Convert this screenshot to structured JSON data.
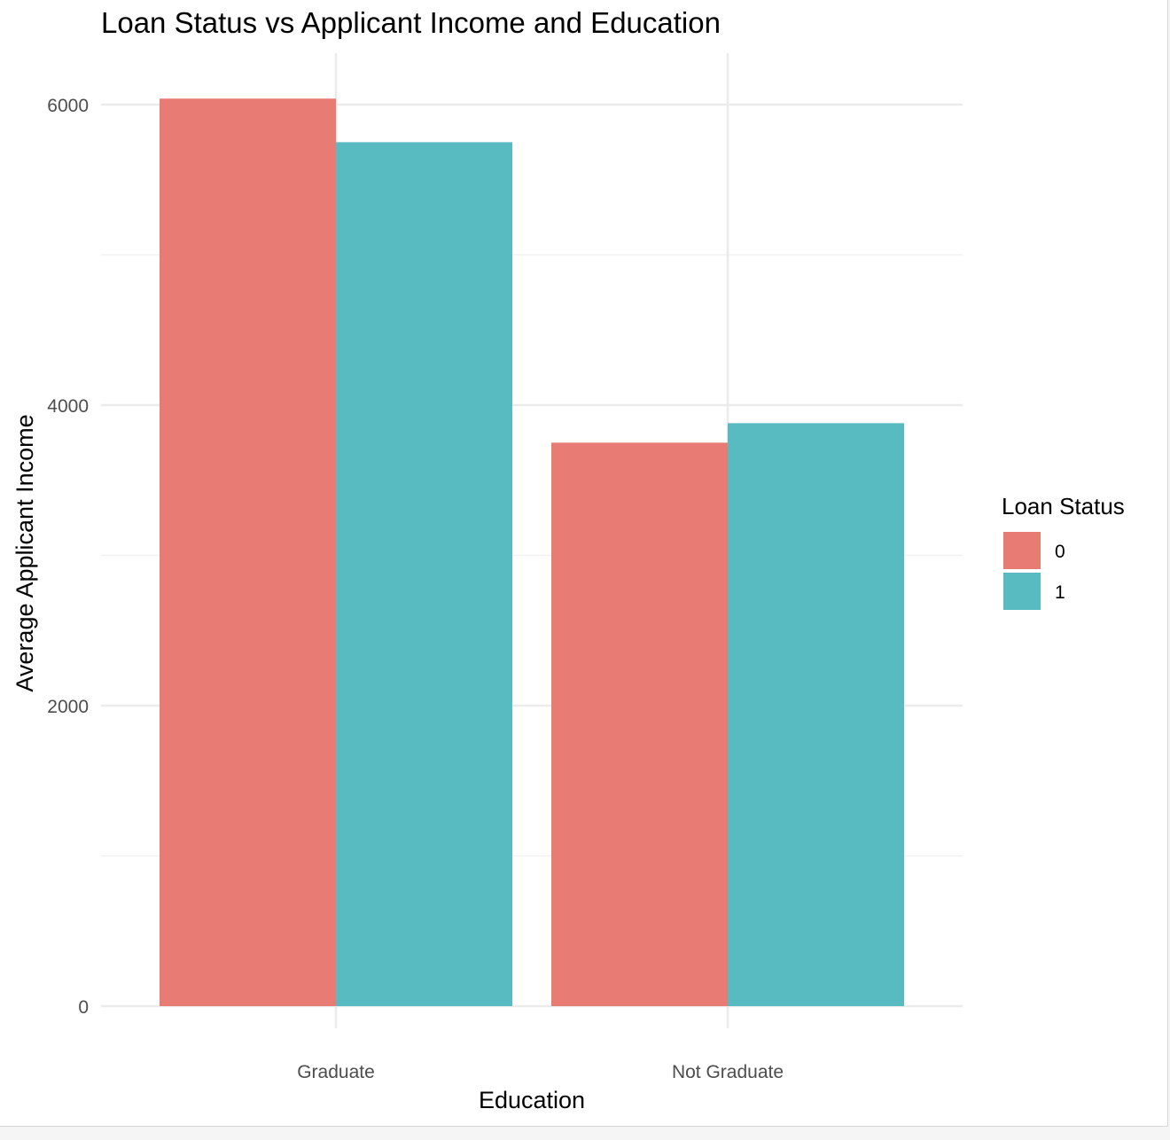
{
  "chart_data": {
    "type": "bar",
    "title": "Loan Status vs Applicant Income and Education",
    "xlabel": "Education",
    "ylabel": "Average Applicant Income",
    "categories": [
      "Graduate",
      "Not Graduate"
    ],
    "series": [
      {
        "name": "0",
        "values": [
          6040,
          3750
        ],
        "color": "#E87B73"
      },
      {
        "name": "1",
        "values": [
          5750,
          3880
        ],
        "color": "#57BBC1"
      }
    ],
    "ylim": [
      0,
      6000
    ],
    "yticks": [
      0,
      2000,
      4000,
      6000
    ],
    "ytick_labels": [
      "0",
      "2000",
      "4000",
      "6000"
    ],
    "grid": true,
    "legend": {
      "title": "Loan Status",
      "position": "right"
    }
  }
}
